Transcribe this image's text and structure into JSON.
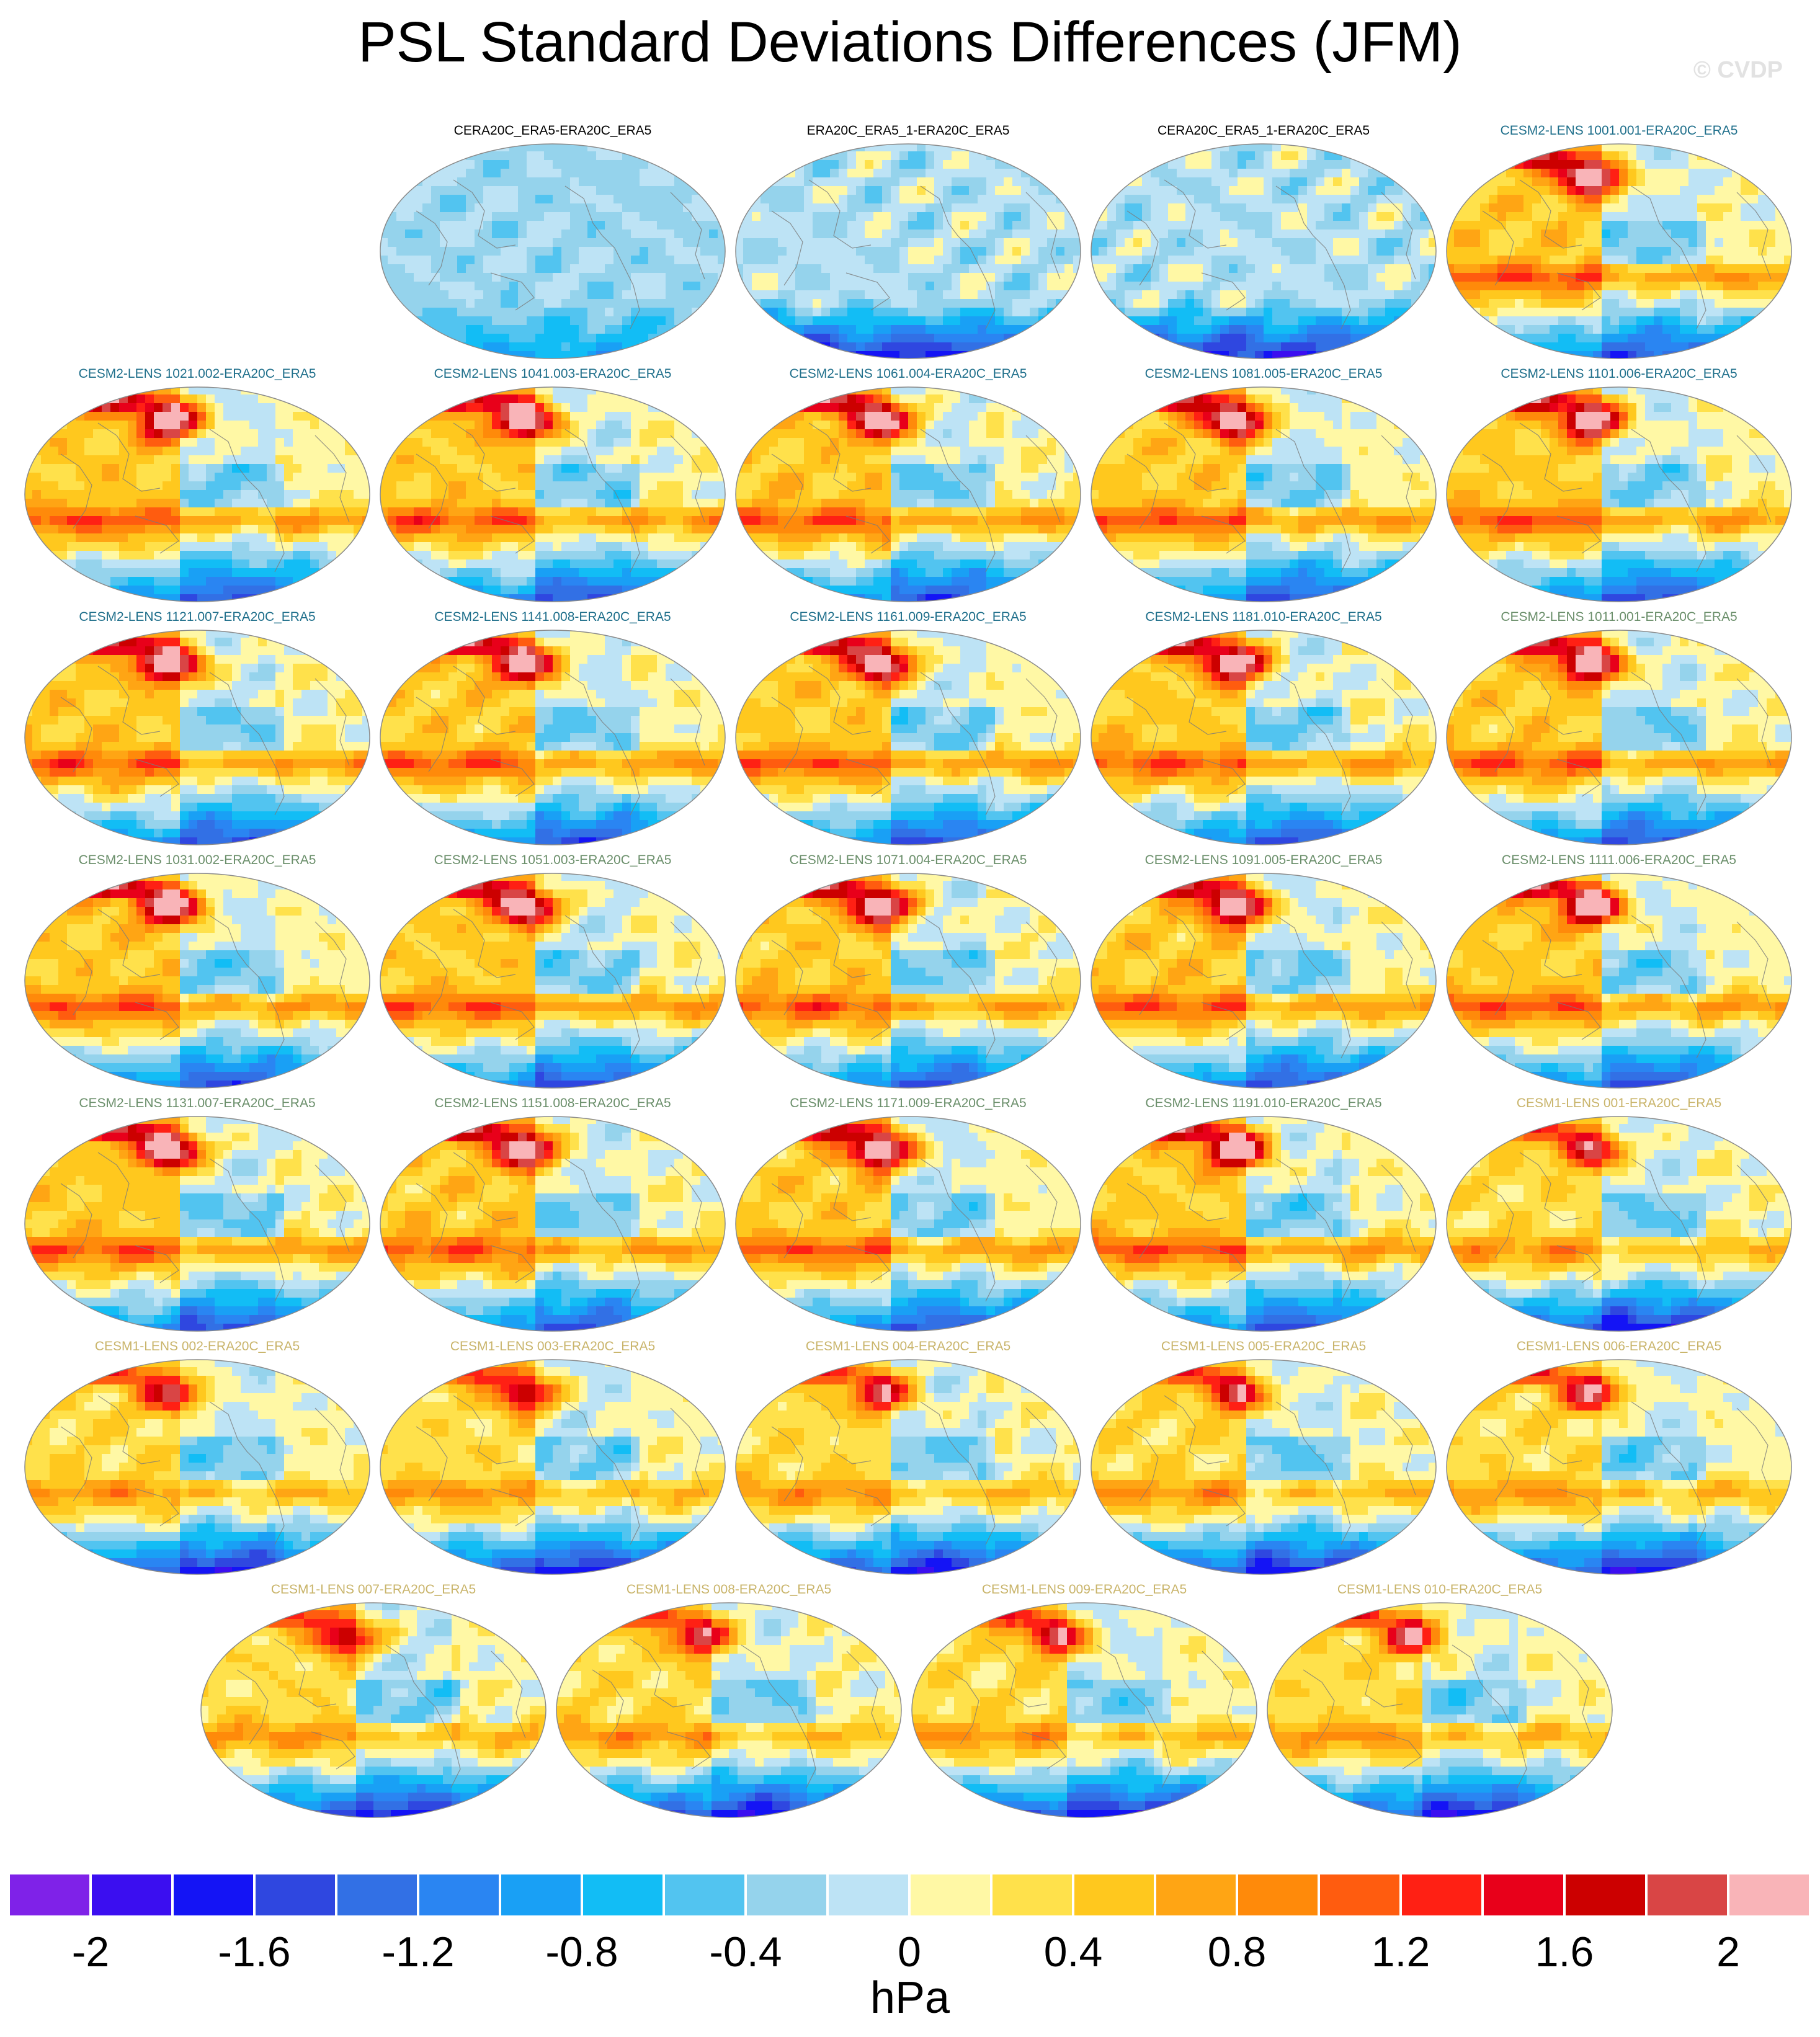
{
  "title": "PSL Standard Deviations Differences (JFM)",
  "watermark": "© CVDP",
  "chart_data": {
    "type": "heatmap",
    "title": "PSL Standard Deviations Differences (JFM)",
    "projection": "Robinson (global, Pacific-centred)",
    "panels": [
      {
        "name": "CERA20C_ERA5-ERA20C_ERA5",
        "color": "#000000",
        "pattern": "weak_neutral"
      },
      {
        "name": "ERA20C_ERA5_1-ERA20C_ERA5",
        "color": "#000000",
        "pattern": "weak_mixed"
      },
      {
        "name": "CERA20C_ERA5_1-ERA20C_ERA5",
        "color": "#000000",
        "pattern": "weak_mixed"
      },
      {
        "name": "CESM2-LENS 1001.001-ERA20C_ERA5",
        "color": "#1f6f8b",
        "pattern": "strong_positive"
      },
      {
        "name": "CESM2-LENS 1021.002-ERA20C_ERA5",
        "color": "#1f6f8b",
        "pattern": "strong_positive"
      },
      {
        "name": "CESM2-LENS 1041.003-ERA20C_ERA5",
        "color": "#1f6f8b",
        "pattern": "strong_positive"
      },
      {
        "name": "CESM2-LENS 1061.004-ERA20C_ERA5",
        "color": "#1f6f8b",
        "pattern": "strong_positive"
      },
      {
        "name": "CESM2-LENS 1081.005-ERA20C_ERA5",
        "color": "#1f6f8b",
        "pattern": "strong_positive"
      },
      {
        "name": "CESM2-LENS 1101.006-ERA20C_ERA5",
        "color": "#1f6f8b",
        "pattern": "strong_positive"
      },
      {
        "name": "CESM2-LENS 1121.007-ERA20C_ERA5",
        "color": "#1f6f8b",
        "pattern": "strong_positive"
      },
      {
        "name": "CESM2-LENS 1141.008-ERA20C_ERA5",
        "color": "#1f6f8b",
        "pattern": "strong_positive"
      },
      {
        "name": "CESM2-LENS 1161.009-ERA20C_ERA5",
        "color": "#1f6f8b",
        "pattern": "strong_positive"
      },
      {
        "name": "CESM2-LENS 1181.010-ERA20C_ERA5",
        "color": "#1f6f8b",
        "pattern": "strong_positive"
      },
      {
        "name": "CESM2-LENS 1011.001-ERA20C_ERA5",
        "color": "#6b8f6b",
        "pattern": "strong_positive"
      },
      {
        "name": "CESM2-LENS 1031.002-ERA20C_ERA5",
        "color": "#6b8f6b",
        "pattern": "strong_positive"
      },
      {
        "name": "CESM2-LENS 1051.003-ERA20C_ERA5",
        "color": "#6b8f6b",
        "pattern": "strong_positive"
      },
      {
        "name": "CESM2-LENS 1071.004-ERA20C_ERA5",
        "color": "#6b8f6b",
        "pattern": "strong_positive"
      },
      {
        "name": "CESM2-LENS 1091.005-ERA20C_ERA5",
        "color": "#6b8f6b",
        "pattern": "strong_positive"
      },
      {
        "name": "CESM2-LENS 1111.006-ERA20C_ERA5",
        "color": "#6b8f6b",
        "pattern": "strong_positive"
      },
      {
        "name": "CESM2-LENS 1131.007-ERA20C_ERA5",
        "color": "#6b8f6b",
        "pattern": "strong_positive"
      },
      {
        "name": "CESM2-LENS 1151.008-ERA20C_ERA5",
        "color": "#6b8f6b",
        "pattern": "strong_positive"
      },
      {
        "name": "CESM2-LENS 1171.009-ERA20C_ERA5",
        "color": "#6b8f6b",
        "pattern": "strong_positive"
      },
      {
        "name": "CESM2-LENS 1191.010-ERA20C_ERA5",
        "color": "#6b8f6b",
        "pattern": "strong_positive"
      },
      {
        "name": "CESM1-LENS 001-ERA20C_ERA5",
        "color": "#c9b46a",
        "pattern": "moderate_positive"
      },
      {
        "name": "CESM1-LENS 002-ERA20C_ERA5",
        "color": "#c9b46a",
        "pattern": "moderate_positive"
      },
      {
        "name": "CESM1-LENS 003-ERA20C_ERA5",
        "color": "#c9b46a",
        "pattern": "moderate_positive"
      },
      {
        "name": "CESM1-LENS 004-ERA20C_ERA5",
        "color": "#c9b46a",
        "pattern": "moderate_positive"
      },
      {
        "name": "CESM1-LENS 005-ERA20C_ERA5",
        "color": "#c9b46a",
        "pattern": "moderate_positive"
      },
      {
        "name": "CESM1-LENS 006-ERA20C_ERA5",
        "color": "#c9b46a",
        "pattern": "moderate_positive"
      },
      {
        "name": "CESM1-LENS 007-ERA20C_ERA5",
        "color": "#c9b46a",
        "pattern": "moderate_positive"
      },
      {
        "name": "CESM1-LENS 008-ERA20C_ERA5",
        "color": "#c9b46a",
        "pattern": "moderate_positive"
      },
      {
        "name": "CESM1-LENS 009-ERA20C_ERA5",
        "color": "#c9b46a",
        "pattern": "moderate_positive"
      },
      {
        "name": "CESM1-LENS 010-ERA20C_ERA5",
        "color": "#c9b46a",
        "pattern": "moderate_positive"
      }
    ],
    "colorbar": {
      "units": "hPa",
      "levels": [
        -2.2,
        -2.0,
        -1.8,
        -1.6,
        -1.4,
        -1.2,
        -1.0,
        -0.8,
        -0.6,
        -0.4,
        -0.2,
        0,
        0.2,
        0.4,
        0.6,
        0.8,
        1.0,
        1.2,
        1.4,
        1.6,
        1.8,
        2.0,
        2.2
      ],
      "colors": [
        "#7f22e8",
        "#3b0ef0",
        "#1414f5",
        "#2f47e0",
        "#3270e5",
        "#2a85f2",
        "#19a0f5",
        "#12bdf5",
        "#52c4f0",
        "#95d3ec",
        "#bde3f5",
        "#fff8a5",
        "#ffe14b",
        "#ffc81e",
        "#ffa514",
        "#ff8a0a",
        "#ff5c0f",
        "#ff2014",
        "#e8001a",
        "#cc0000",
        "#d94545",
        "#f9b4b8"
      ],
      "tick_labels": [
        "-2",
        "-1.6",
        "-1.2",
        "-0.8",
        "-0.4",
        "0",
        "0.4",
        "0.8",
        "1.2",
        "1.6",
        "2"
      ],
      "tick_values": [
        -2,
        -1.6,
        -1.2,
        -0.8,
        -0.4,
        0,
        0.4,
        0.8,
        1.2,
        1.6,
        2
      ]
    }
  }
}
